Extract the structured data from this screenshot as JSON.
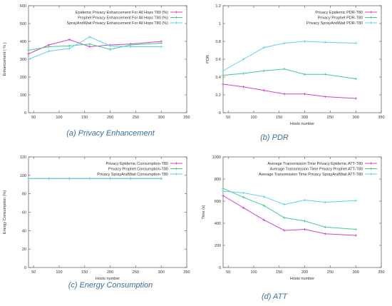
{
  "chart_data": [
    {
      "type": "line",
      "caption": "(a) Privacy Enhancement",
      "xlabel": "",
      "ylabel": "Enhancement ( % )",
      "xlim": [
        40,
        350
      ],
      "ylim": [
        0,
        600
      ],
      "xticks": [
        50,
        100,
        150,
        200,
        250,
        300,
        350
      ],
      "yticks": [
        0,
        100,
        200,
        300,
        400,
        500,
        600
      ],
      "grid": false,
      "legend": "top-right",
      "x": [
        40,
        80,
        120,
        160,
        200,
        240,
        300
      ],
      "series": [
        {
          "name": "Epidemic Privacy Enhancement For All Hops T80 (%)",
          "color": "#cc44cc",
          "values": [
            330,
            380,
            410,
            370,
            380,
            385,
            400
          ]
        },
        {
          "name": "Prophet Privacy Enhancement For All Hops T80 (%)",
          "color": "#44cc88",
          "values": [
            350,
            370,
            375,
            385,
            355,
            380,
            390
          ]
        },
        {
          "name": "SprayAndWait Privacy Enhancement For All Hops T80 (%)",
          "color": "#66ccee",
          "values": [
            300,
            345,
            360,
            425,
            375,
            370,
            370
          ]
        }
      ]
    },
    {
      "type": "line",
      "caption": "(b) PDR",
      "xlabel": "Hosts number",
      "ylabel": "PDR",
      "xlim": [
        40,
        350
      ],
      "ylim": [
        0,
        1.2
      ],
      "xticks": [
        50,
        100,
        150,
        200,
        250,
        300,
        350
      ],
      "yticks": [
        0,
        0.2,
        0.4,
        0.6,
        0.8,
        1,
        1.2
      ],
      "grid": false,
      "legend": "top-right",
      "x": [
        40,
        80,
        120,
        160,
        200,
        240,
        300
      ],
      "series": [
        {
          "name": "Privacy Epidemic PDR-T80",
          "color": "#cc44cc",
          "values": [
            0.32,
            0.29,
            0.25,
            0.21,
            0.21,
            0.18,
            0.16
          ]
        },
        {
          "name": "Privacy Prophet PDR-T80",
          "color": "#44cc88",
          "values": [
            0.42,
            0.44,
            0.47,
            0.49,
            0.43,
            0.43,
            0.38
          ]
        },
        {
          "name": "Privacy SprayAndWait PDR-T80",
          "color": "#66ccee",
          "values": [
            0.47,
            0.6,
            0.73,
            0.78,
            0.8,
            0.79,
            0.78
          ]
        }
      ]
    },
    {
      "type": "line",
      "caption": "(c) Energy Consumption",
      "xlabel": "Hosts number",
      "ylabel": "Energy Consumption (%)",
      "xlim": [
        40,
        350
      ],
      "ylim": [
        0,
        120
      ],
      "xticks": [
        50,
        100,
        150,
        200,
        250,
        300,
        350
      ],
      "yticks": [
        0,
        20,
        40,
        60,
        80,
        100,
        120
      ],
      "grid": false,
      "legend": "top-right",
      "x": [
        40,
        80,
        120,
        160,
        200,
        240,
        300
      ],
      "series": [
        {
          "name": "Privacy Epidemic Consumption-T80",
          "color": "#cc44cc",
          "values": [
            96.5,
            96.5,
            96.5,
            96.5,
            96.5,
            96.5,
            96.5
          ]
        },
        {
          "name": "Privacy Prophet Consumption-T80",
          "color": "#44cc88",
          "values": [
            96.5,
            96.5,
            96.5,
            96.5,
            96.5,
            96.5,
            96.5
          ]
        },
        {
          "name": "Privacy SprayAndWait Consumption-T80",
          "color": "#66ccee",
          "values": [
            96.5,
            96.5,
            96.5,
            96.5,
            96.5,
            96.5,
            96.5
          ]
        }
      ]
    },
    {
      "type": "line",
      "caption": "(d) ATT",
      "xlabel": "Hosts number",
      "ylabel": "Time (s)",
      "xlim": [
        40,
        350
      ],
      "ylim": [
        0,
        1000
      ],
      "xticks": [
        50,
        100,
        150,
        200,
        250,
        300,
        350
      ],
      "yticks": [
        0,
        200,
        400,
        600,
        800,
        1000
      ],
      "grid": false,
      "legend": "top-right",
      "x": [
        40,
        80,
        120,
        160,
        200,
        240,
        300
      ],
      "series": [
        {
          "name": "Average Transmission Time Privacy Epidemic ATT-T80",
          "color": "#cc44cc",
          "values": [
            650,
            540,
            430,
            335,
            345,
            305,
            290
          ]
        },
        {
          "name": "Average Transmission Time Privacy Prophet ATT-T80",
          "color": "#44cc88",
          "values": [
            715,
            635,
            560,
            450,
            420,
            365,
            345
          ]
        },
        {
          "name": "Average Transmission Time Privacy SprayAndWait ATT-T80",
          "color": "#66ccee",
          "values": [
            690,
            675,
            640,
            570,
            610,
            590,
            605
          ]
        }
      ]
    }
  ]
}
